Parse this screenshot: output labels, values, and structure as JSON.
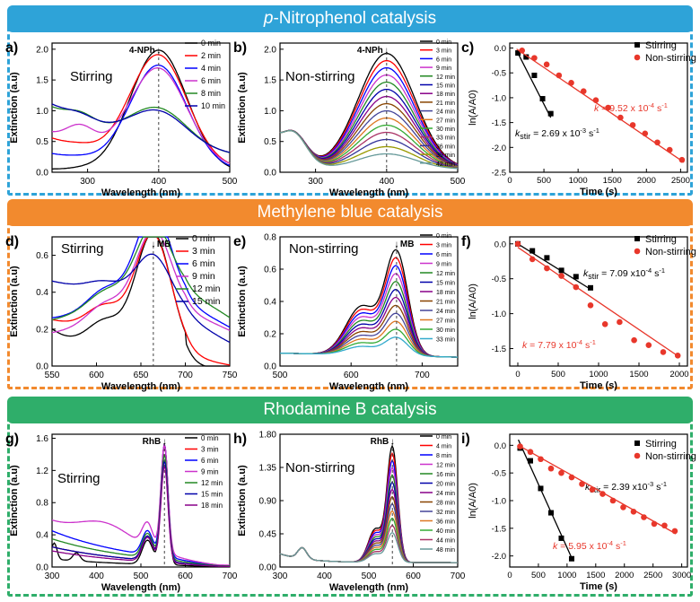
{
  "colors": {
    "blue": "#2ea3d8",
    "orange": "#f28a2e",
    "green": "#2fae6a",
    "red": "#e8372b",
    "black": "#000000"
  },
  "sections": [
    {
      "title_prefix": "p",
      "title": "-Nitrophenol catalysis"
    },
    {
      "title_prefix": "",
      "title": "Methylene blue catalysis"
    },
    {
      "title_prefix": "",
      "title": "Rhodamine B catalysis"
    }
  ],
  "chart_data": [
    {
      "id": "a",
      "panel_label": "a)",
      "type": "line",
      "subtitle": "Stirring",
      "peak_label": "4-NPh",
      "peak_x": 400,
      "xlabel": "Wavelength (nm)",
      "ylabel": "Extinction (a.u)",
      "xlim": [
        250,
        500
      ],
      "ylim": [
        0,
        2.1
      ],
      "xticks": [
        300,
        400,
        500
      ],
      "yticks": [
        0,
        0.5,
        1.0,
        1.5,
        2.0
      ],
      "ytick_labels": [
        "0.0",
        "0.5",
        "1.0",
        "1.5",
        "2.0"
      ],
      "legend": [
        "0 min",
        "2 min",
        "4 min",
        "6 min",
        "8 min",
        "10 min"
      ],
      "series_colors": [
        "#000000",
        "#ff0000",
        "#0000ff",
        "#cc33cc",
        "#228822",
        "#0000aa"
      ]
    },
    {
      "id": "b",
      "panel_label": "b)",
      "type": "line",
      "subtitle": "Non-stirring",
      "peak_label": "4-NPh",
      "peak_x": 400,
      "xlabel": "Wavelength (nm)",
      "ylabel": "Extinction (a.u)",
      "xlim": [
        250,
        500
      ],
      "ylim": [
        0,
        2.1
      ],
      "xticks": [
        300,
        400,
        500
      ],
      "yticks": [
        0,
        0.5,
        1.0,
        1.5,
        2.0
      ],
      "ytick_labels": [
        "0.0",
        "0.5",
        "1.0",
        "1.5",
        "2.0"
      ],
      "legend": [
        "0 min",
        "3 min",
        "6 min",
        "9 min",
        "12 min",
        "15 min",
        "18 min",
        "21 min",
        "24 min",
        "27 min",
        "30 min",
        "33 min",
        "36 min",
        "39 min",
        "42 min"
      ],
      "series_colors": [
        "#000000",
        "#ff0000",
        "#0000ff",
        "#cc33cc",
        "#228822",
        "#0000aa",
        "#880088",
        "#884400",
        "#444499",
        "#dd7722",
        "#33aa33",
        "#aa3366",
        "#333399",
        "#999900",
        "#669999"
      ]
    },
    {
      "id": "c",
      "panel_label": "c)",
      "type": "scatter",
      "xlabel": "Time (s)",
      "ylabel": "ln(A/A0)",
      "xlim": [
        0,
        2600
      ],
      "ylim": [
        -2.5,
        0.1
      ],
      "xticks": [
        0,
        500,
        1000,
        1500,
        2000,
        2500
      ],
      "xtick_labels": [
        "0",
        "500",
        "1000",
        "1500",
        "2000",
        "2500"
      ],
      "yticks": [
        0,
        -0.5,
        -1.0,
        -1.5,
        -2.0,
        -2.5
      ],
      "ytick_labels": [
        "0.0",
        "-0.5",
        "-1.0",
        "-1.5",
        "-2.0",
        "-2.5"
      ],
      "series": [
        {
          "name": "Stirring",
          "marker": "square",
          "color": "#000000",
          "x": [
            120,
            240,
            360,
            480,
            600
          ],
          "y": [
            -0.1,
            -0.18,
            -0.55,
            -1.02,
            -1.32
          ],
          "fit": [
            [
              100,
              -0.05
            ],
            [
              600,
              -1.4
            ]
          ],
          "k_label": "k",
          "k_sub": "stir",
          "k_text": " = 2.69 x 10",
          "k_exp": "-3",
          "k_unit": " s",
          "k_unit_exp": "-1"
        },
        {
          "name": "Non-stirring",
          "marker": "circle",
          "color": "#e8372b",
          "x": [
            180,
            360,
            540,
            720,
            900,
            1080,
            1260,
            1440,
            1620,
            1800,
            1980,
            2160,
            2340,
            2520
          ],
          "y": [
            -0.05,
            -0.2,
            -0.33,
            -0.55,
            -0.7,
            -0.87,
            -1.05,
            -1.2,
            -1.4,
            -1.55,
            -1.72,
            -1.9,
            -2.05,
            -2.25
          ],
          "fit": [
            [
              100,
              -0.02
            ],
            [
              2550,
              -2.3
            ]
          ],
          "k_label": "k",
          "k_sub": "",
          "k_text": " = 9.52 x 10",
          "k_exp": "-4",
          "k_unit": " s",
          "k_unit_exp": "-1"
        }
      ]
    },
    {
      "id": "d",
      "panel_label": "d)",
      "type": "line",
      "subtitle": "Stirring",
      "peak_label": "MB",
      "peak_x": 664,
      "xlabel": "Wavelength (nm)",
      "ylabel": "Extinction (a.u)",
      "xlim": [
        550,
        750
      ],
      "ylim": [
        0,
        0.7
      ],
      "xticks": [
        550,
        600,
        650,
        700,
        750
      ],
      "yticks": [
        0,
        0.2,
        0.4,
        0.6
      ],
      "ytick_labels": [
        "0.0",
        "0.2",
        "0.4",
        "0.6"
      ],
      "legend": [
        "0 min",
        "3 min",
        "6 min",
        "9 min",
        "12 min",
        "15 min"
      ],
      "series_colors": [
        "#000000",
        "#ff0000",
        "#0000ff",
        "#cc33cc",
        "#228822",
        "#0000aa"
      ]
    },
    {
      "id": "e",
      "panel_label": "e)",
      "type": "line",
      "subtitle": "Non-stirring",
      "peak_label": "MB",
      "peak_x": 664,
      "xlabel": "Wavelength (nm)",
      "ylabel": "Extinction (a.u)",
      "xlim": [
        500,
        750
      ],
      "ylim": [
        0,
        0.8
      ],
      "xticks": [
        500,
        600,
        700
      ],
      "yticks": [
        0,
        0.2,
        0.4,
        0.6,
        0.8
      ],
      "ytick_labels": [
        "0.0",
        "0.2",
        "0.4",
        "0.6",
        "0.8"
      ],
      "legend": [
        "0 min",
        "3 min",
        "6 min",
        "9 min",
        "12 min",
        "15 min",
        "18 min",
        "21 min",
        "24 min",
        "27 min",
        "30 min",
        "33 min"
      ],
      "series_colors": [
        "#000000",
        "#ff0000",
        "#0000ff",
        "#cc33cc",
        "#228822",
        "#0000aa",
        "#880088",
        "#884400",
        "#444499",
        "#dd7722",
        "#33aa33",
        "#33aacc"
      ]
    },
    {
      "id": "f",
      "panel_label": "f)",
      "type": "scatter",
      "xlabel": "Time (s)",
      "ylabel": "ln(A/A0)",
      "xlim": [
        -100,
        2100
      ],
      "ylim": [
        -1.75,
        0.1
      ],
      "xticks": [
        0,
        500,
        1000,
        1500,
        2000
      ],
      "xtick_labels": [
        "0",
        "500",
        "1000",
        "1500",
        "2000"
      ],
      "yticks": [
        0,
        -0.5,
        -1.0,
        -1.5
      ],
      "ytick_labels": [
        "0.0",
        "-0.5",
        "-1.0",
        "-1.5"
      ],
      "series": [
        {
          "name": "Stirring",
          "marker": "square",
          "color": "#000000",
          "x": [
            0,
            180,
            360,
            540,
            720,
            900
          ],
          "y": [
            0.0,
            -0.1,
            -0.2,
            -0.38,
            -0.47,
            -0.63
          ],
          "fit": [
            [
              0,
              0.0
            ],
            [
              900,
              -0.65
            ]
          ],
          "k_label": "k",
          "k_sub": "stir",
          "k_text": " = 7.09 x10",
          "k_exp": "-4",
          "k_unit": " s",
          "k_unit_exp": "-1"
        },
        {
          "name": "Non-stirring",
          "marker": "circle",
          "color": "#e8372b",
          "x": [
            0,
            180,
            360,
            540,
            720,
            900,
            1080,
            1260,
            1440,
            1620,
            1800,
            1980
          ],
          "y": [
            0.0,
            -0.22,
            -0.35,
            -0.46,
            -0.62,
            -0.88,
            -1.15,
            -1.12,
            -1.38,
            -1.45,
            -1.55,
            -1.6
          ],
          "fit": [
            [
              0,
              -0.05
            ],
            [
              2000,
              -1.62
            ]
          ],
          "k_label": "k",
          "k_sub": "",
          "k_text": " = 7.79 x 10",
          "k_exp": "-4",
          "k_unit": " s",
          "k_unit_exp": "-1"
        }
      ]
    },
    {
      "id": "g",
      "panel_label": "g)",
      "type": "line",
      "subtitle": "Stirring",
      "peak_label": "RhB",
      "peak_x": 553,
      "xlabel": "Wavelength (nm)",
      "ylabel": "Extinction (a.u)",
      "xlim": [
        300,
        700
      ],
      "ylim": [
        0,
        1.65
      ],
      "xticks": [
        300,
        400,
        500,
        600,
        700
      ],
      "yticks": [
        0,
        0.4,
        0.8,
        1.2,
        1.6
      ],
      "ytick_labels": [
        "0.0",
        "0.4",
        "0.8",
        "1.2",
        "1.6"
      ],
      "legend": [
        "0 min",
        "3 min",
        "6 min",
        "9 min",
        "12 min",
        "15 min",
        "18 min"
      ],
      "series_colors": [
        "#000000",
        "#ff0000",
        "#0000ff",
        "#cc33cc",
        "#228822",
        "#0000aa",
        "#880088"
      ]
    },
    {
      "id": "h",
      "panel_label": "h)",
      "type": "line",
      "subtitle": "Non-stirring",
      "peak_label": "RhB",
      "peak_x": 553,
      "xlabel": "Wavelength (nm)",
      "ylabel": "Extinction (a.u)",
      "xlim": [
        300,
        700
      ],
      "ylim": [
        0,
        1.8
      ],
      "xticks": [
        300,
        400,
        500,
        600,
        700
      ],
      "yticks": [
        0,
        0.45,
        0.9,
        1.35,
        1.8
      ],
      "ytick_labels": [
        "0.00",
        "0.45",
        "0.90",
        "1.35",
        "1.80"
      ],
      "legend": [
        "0 min",
        "4 min",
        "8 min",
        "12 min",
        "16 min",
        "20 min",
        "24 min",
        "28 min",
        "32 min",
        "36 min",
        "40 min",
        "44 min",
        "48 min"
      ],
      "series_colors": [
        "#000000",
        "#ff0000",
        "#0000ff",
        "#cc33cc",
        "#228822",
        "#0000aa",
        "#880088",
        "#884400",
        "#444499",
        "#dd7722",
        "#33aa33",
        "#aa3366",
        "#669999"
      ]
    },
    {
      "id": "i",
      "panel_label": "i)",
      "type": "scatter",
      "xlabel": "Time (s)",
      "ylabel": "ln(A/A0)",
      "xlim": [
        0,
        3100
      ],
      "ylim": [
        -2.2,
        0.2
      ],
      "xticks": [
        0,
        500,
        1000,
        1500,
        2000,
        2500,
        3000
      ],
      "xtick_labels": [
        "0",
        "500",
        "1000",
        "1500",
        "2000",
        "2500",
        "3000"
      ],
      "yticks": [
        0,
        -0.5,
        -1.0,
        -1.5,
        -2.0
      ],
      "ytick_labels": [
        "0.0",
        "-0.5",
        "-1.0",
        "-1.5",
        "-2.0"
      ],
      "series": [
        {
          "name": "Stirring",
          "marker": "square",
          "color": "#000000",
          "x": [
            180,
            360,
            540,
            720,
            900,
            1080
          ],
          "y": [
            -0.05,
            -0.28,
            -0.78,
            -1.22,
            -1.68,
            -2.05
          ],
          "fit": [
            [
              150,
              0.1
            ],
            [
              1100,
              -2.08
            ]
          ],
          "k_label": "k",
          "k_sub": "stir",
          "k_text": " = 2.39 x10",
          "k_exp": "-3",
          "k_unit": " s",
          "k_unit_exp": "-1"
        },
        {
          "name": "Non-stirring",
          "marker": "circle",
          "color": "#e8372b",
          "x": [
            180,
            360,
            540,
            720,
            900,
            1080,
            1260,
            1440,
            1620,
            1800,
            1980,
            2160,
            2340,
            2520,
            2700,
            2880
          ],
          "y": [
            -0.02,
            -0.12,
            -0.25,
            -0.42,
            -0.5,
            -0.58,
            -0.7,
            -0.8,
            -0.88,
            -1.0,
            -1.12,
            -1.2,
            -1.3,
            -1.42,
            -1.45,
            -1.55
          ],
          "fit": [
            [
              150,
              0.0
            ],
            [
              2900,
              -1.6
            ]
          ],
          "k_label": "k",
          "k_sub": "",
          "k_text": " = 5.95 x 10",
          "k_exp": "-4",
          "k_unit": " s",
          "k_unit_exp": "-1"
        }
      ]
    }
  ]
}
